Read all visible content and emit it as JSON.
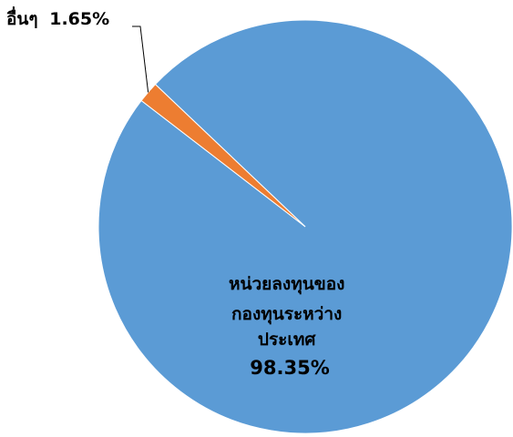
{
  "chart_data": {
    "type": "pie",
    "slices": [
      {
        "label_lines": [
          "หน่วยลงทุนของ",
          "กองทุนระหว่าง",
          "ประเทศ"
        ],
        "percent_text": "98.35%",
        "value": 98.35,
        "color": "#5B9BD5"
      },
      {
        "label_lines": [
          "อื่นๆ"
        ],
        "percent_text": "1.65%",
        "value": 1.65,
        "color": "#ED7D31"
      }
    ]
  }
}
